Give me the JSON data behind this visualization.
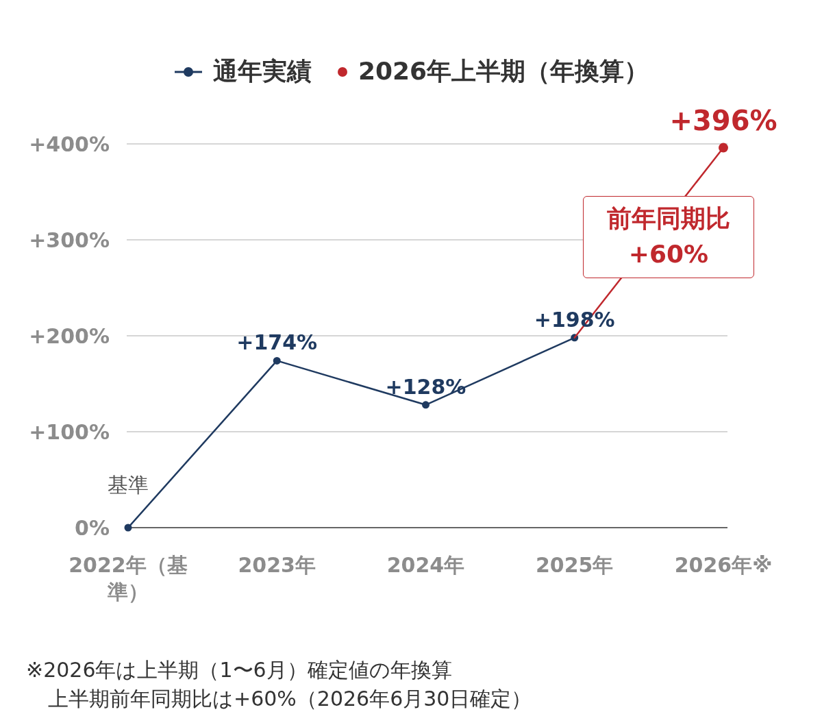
{
  "chart_data": {
    "type": "line",
    "categories": [
      "2022年（基準）",
      "2023年",
      "2024年",
      "2025年",
      "2026年※"
    ],
    "series": [
      {
        "name": "通年実績",
        "color": "#1f3a60",
        "values": [
          0,
          174,
          128,
          198,
          null
        ],
        "value_labels": [
          "基準",
          "+174%",
          "+128%",
          "+198%",
          null
        ]
      },
      {
        "name": "2026年上半期（年換算）",
        "color": "#c0282d",
        "values": [
          null,
          null,
          null,
          198,
          396
        ],
        "value_labels": [
          null,
          null,
          null,
          null,
          "+396%"
        ]
      }
    ],
    "ylim": [
      0,
      400
    ],
    "yticks": [
      {
        "value": 0,
        "label": "0%"
      },
      {
        "value": 100,
        "label": "+100%"
      },
      {
        "value": 200,
        "label": "+200%"
      },
      {
        "value": 300,
        "label": "+300%"
      },
      {
        "value": 400,
        "label": "+400%"
      }
    ],
    "grid": "y",
    "legend": "top",
    "marker": "circle",
    "annotations": [
      "前年同期比 +60%",
      "※2026年は上半期（1〜6月）確定値の年換算",
      "上半期前年同期比は+60%（2026年6月30日確定）"
    ]
  }
}
